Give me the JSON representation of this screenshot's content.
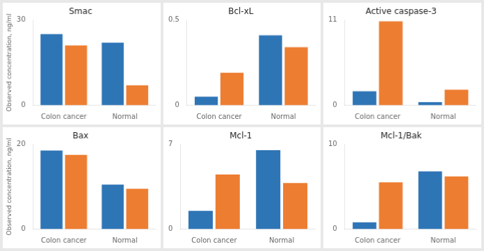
{
  "chart_data": [
    {
      "type": "bar",
      "title": "Smac",
      "ylabel": "Observed concentration, ng/ml",
      "categories": [
        "Colon cancer",
        "Normal"
      ],
      "series": [
        {
          "color": "#2E75B6",
          "values": [
            25.0,
            22.0
          ]
        },
        {
          "color": "#ED7D31",
          "values": [
            21.0,
            7.0
          ]
        }
      ],
      "ylim": [
        0,
        30
      ],
      "yticks": [
        0,
        30
      ],
      "grid": false
    },
    {
      "type": "bar",
      "title": "Bcl-xL",
      "categories": [
        "Colon cancer",
        "Normal"
      ],
      "series": [
        {
          "color": "#2E75B6",
          "values": [
            0.05,
            0.41
          ]
        },
        {
          "color": "#ED7D31",
          "values": [
            0.19,
            0.34
          ]
        }
      ],
      "ylim": [
        0,
        0.5
      ],
      "yticks": [
        0,
        0.5
      ],
      "grid": false
    },
    {
      "type": "bar",
      "title": "Active caspase-3",
      "categories": [
        "Colon cancer",
        "Normal"
      ],
      "series": [
        {
          "color": "#2E75B6",
          "values": [
            1.8,
            0.4
          ]
        },
        {
          "color": "#ED7D31",
          "values": [
            10.8,
            2.0
          ]
        }
      ],
      "ylim": [
        0,
        11
      ],
      "yticks": [
        0,
        11
      ],
      "grid": false
    },
    {
      "type": "bar",
      "title": "Bax",
      "ylabel": "Observed concentration, ng/ml",
      "categories": [
        "Colon cancer",
        "Normal"
      ],
      "series": [
        {
          "color": "#2E75B6",
          "values": [
            18.5,
            10.5
          ]
        },
        {
          "color": "#ED7D31",
          "values": [
            17.5,
            9.5
          ]
        }
      ],
      "ylim": [
        0,
        20
      ],
      "yticks": [
        0,
        20
      ],
      "grid": false
    },
    {
      "type": "bar",
      "title": "Mcl-1",
      "categories": [
        "Colon cancer",
        "Normal"
      ],
      "series": [
        {
          "color": "#2E75B6",
          "values": [
            1.5,
            6.5
          ]
        },
        {
          "color": "#ED7D31",
          "values": [
            4.5,
            3.8
          ]
        }
      ],
      "ylim": [
        0,
        7
      ],
      "yticks": [
        0,
        7
      ],
      "grid": false
    },
    {
      "type": "bar",
      "title": "Mcl-1/Bak",
      "categories": [
        "Colon cancer",
        "Normal"
      ],
      "series": [
        {
          "color": "#2E75B6",
          "values": [
            0.8,
            6.8
          ]
        },
        {
          "color": "#ED7D31",
          "values": [
            5.5,
            6.2
          ]
        }
      ],
      "ylim": [
        0,
        10
      ],
      "yticks": [
        0,
        10
      ],
      "grid": false
    }
  ]
}
